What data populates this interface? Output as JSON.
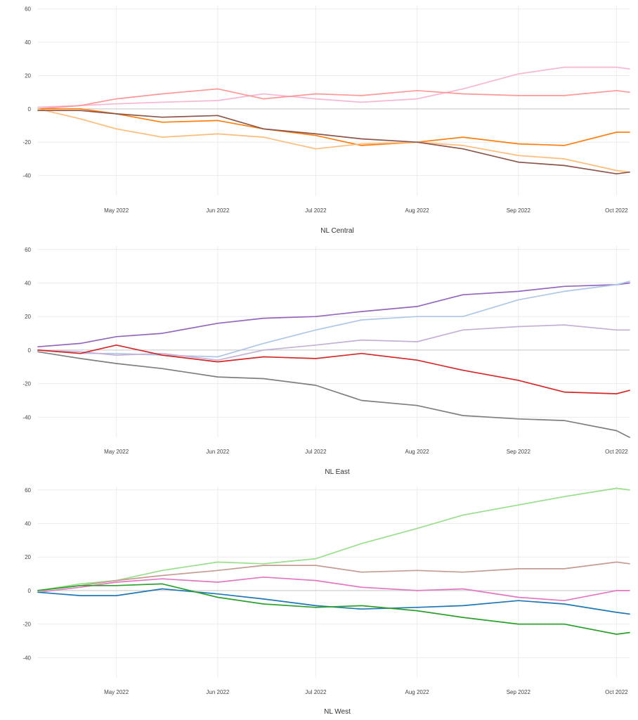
{
  "chart_data": [
    {
      "type": "line",
      "title": "NL Central",
      "xlabel": "",
      "ylabel": "",
      "ylim": [
        -52,
        62
      ],
      "grid": true,
      "zero_line": true,
      "legend": "none",
      "x_ticks": [
        "May 2022",
        "Jun 2022",
        "Jul 2022",
        "Aug 2022",
        "Sep 2022",
        "Oct 2022"
      ],
      "y_ticks": [
        60,
        40,
        20,
        0,
        -20,
        -40
      ],
      "x_tick_dates": [
        "2022-05-01",
        "2022-06-01",
        "2022-07-01",
        "2022-08-01",
        "2022-09-01",
        "2022-10-01"
      ],
      "x_range": [
        "2022-04-07",
        "2022-10-05"
      ],
      "series": [
        {
          "color": "#f7b6d2",
          "x": [
            "2022-04-07",
            "2022-04-20",
            "2022-05-01",
            "2022-05-15",
            "2022-06-01",
            "2022-06-15",
            "2022-07-01",
            "2022-07-15",
            "2022-08-01",
            "2022-08-15",
            "2022-09-01",
            "2022-09-15",
            "2022-10-01",
            "2022-10-05"
          ],
          "y": [
            1,
            2,
            3,
            4,
            5,
            9,
            6,
            4,
            6,
            12,
            21,
            25,
            25,
            24
          ]
        },
        {
          "color": "#ff9896",
          "x": [
            "2022-04-07",
            "2022-04-20",
            "2022-05-01",
            "2022-05-15",
            "2022-06-01",
            "2022-06-15",
            "2022-07-01",
            "2022-07-15",
            "2022-08-01",
            "2022-08-15",
            "2022-09-01",
            "2022-09-15",
            "2022-10-01",
            "2022-10-05"
          ],
          "y": [
            0,
            2,
            6,
            9,
            12,
            6,
            9,
            8,
            11,
            9,
            8,
            8,
            11,
            10
          ]
        },
        {
          "color": "#ff7f0e",
          "x": [
            "2022-04-07",
            "2022-04-20",
            "2022-05-01",
            "2022-05-15",
            "2022-06-01",
            "2022-06-15",
            "2022-07-01",
            "2022-07-15",
            "2022-08-01",
            "2022-08-15",
            "2022-09-01",
            "2022-09-15",
            "2022-10-01",
            "2022-10-05"
          ],
          "y": [
            0,
            0,
            -3,
            -8,
            -7,
            -12,
            -16,
            -22,
            -20,
            -17,
            -21,
            -22,
            -14,
            -14
          ]
        },
        {
          "color": "#ffbb78",
          "x": [
            "2022-04-07",
            "2022-04-20",
            "2022-05-01",
            "2022-05-15",
            "2022-06-01",
            "2022-06-15",
            "2022-07-01",
            "2022-07-15",
            "2022-08-01",
            "2022-08-15",
            "2022-09-01",
            "2022-09-15",
            "2022-10-01",
            "2022-10-05"
          ],
          "y": [
            0,
            -6,
            -12,
            -17,
            -15,
            -17,
            -24,
            -21,
            -20,
            -22,
            -28,
            -30,
            -37,
            -38
          ]
        },
        {
          "color": "#8c564b",
          "x": [
            "2022-04-07",
            "2022-04-20",
            "2022-05-01",
            "2022-05-15",
            "2022-06-01",
            "2022-06-15",
            "2022-07-01",
            "2022-07-15",
            "2022-08-01",
            "2022-08-15",
            "2022-09-01",
            "2022-09-15",
            "2022-10-01",
            "2022-10-05"
          ],
          "y": [
            -1,
            -1,
            -3,
            -5,
            -4,
            -12,
            -15,
            -18,
            -20,
            -24,
            -32,
            -34,
            -39,
            -38
          ]
        }
      ]
    },
    {
      "type": "line",
      "title": "NL East",
      "xlabel": "",
      "ylabel": "",
      "ylim": [
        -52,
        62
      ],
      "grid": true,
      "zero_line": true,
      "legend": "none",
      "x_ticks": [
        "May 2022",
        "Jun 2022",
        "Jul 2022",
        "Aug 2022",
        "Sep 2022",
        "Oct 2022"
      ],
      "y_ticks": [
        60,
        40,
        20,
        0,
        -20,
        -40
      ],
      "x_tick_dates": [
        "2022-05-01",
        "2022-06-01",
        "2022-07-01",
        "2022-08-01",
        "2022-09-01",
        "2022-10-01"
      ],
      "x_range": [
        "2022-04-07",
        "2022-10-05"
      ],
      "series": [
        {
          "color": "#9467bd",
          "x": [
            "2022-04-07",
            "2022-04-20",
            "2022-05-01",
            "2022-05-15",
            "2022-06-01",
            "2022-06-15",
            "2022-07-01",
            "2022-07-15",
            "2022-08-01",
            "2022-08-15",
            "2022-09-01",
            "2022-09-15",
            "2022-10-01",
            "2022-10-05"
          ],
          "y": [
            2,
            4,
            8,
            10,
            16,
            19,
            20,
            23,
            26,
            33,
            35,
            38,
            39,
            40
          ]
        },
        {
          "color": "#aec7e8",
          "x": [
            "2022-04-07",
            "2022-04-20",
            "2022-05-01",
            "2022-05-15",
            "2022-06-01",
            "2022-06-15",
            "2022-07-01",
            "2022-07-15",
            "2022-08-01",
            "2022-08-15",
            "2022-09-01",
            "2022-09-15",
            "2022-10-01",
            "2022-10-05"
          ],
          "y": [
            0,
            -2,
            -2,
            -3,
            -4,
            4,
            12,
            18,
            20,
            20,
            30,
            35,
            39,
            41
          ]
        },
        {
          "color": "#c5b0d5",
          "x": [
            "2022-04-07",
            "2022-04-20",
            "2022-05-01",
            "2022-05-15",
            "2022-06-01",
            "2022-06-15",
            "2022-07-01",
            "2022-07-15",
            "2022-08-01",
            "2022-08-15",
            "2022-09-01",
            "2022-09-15",
            "2022-10-01",
            "2022-10-05"
          ],
          "y": [
            0,
            -1,
            -3,
            -2,
            -6,
            0,
            3,
            6,
            5,
            12,
            14,
            15,
            12,
            12
          ]
        },
        {
          "color": "#d62728",
          "x": [
            "2022-04-07",
            "2022-04-20",
            "2022-05-01",
            "2022-05-15",
            "2022-06-01",
            "2022-06-15",
            "2022-07-01",
            "2022-07-15",
            "2022-08-01",
            "2022-08-15",
            "2022-09-01",
            "2022-09-15",
            "2022-10-01",
            "2022-10-05"
          ],
          "y": [
            0,
            -2,
            3,
            -3,
            -7,
            -4,
            -5,
            -2,
            -6,
            -12,
            -18,
            -25,
            -26,
            -24
          ]
        },
        {
          "color": "#7f7f7f",
          "x": [
            "2022-04-07",
            "2022-04-20",
            "2022-05-01",
            "2022-05-15",
            "2022-06-01",
            "2022-06-15",
            "2022-07-01",
            "2022-07-15",
            "2022-08-01",
            "2022-08-15",
            "2022-09-01",
            "2022-09-15",
            "2022-10-01",
            "2022-10-05"
          ],
          "y": [
            -1,
            -5,
            -8,
            -11,
            -16,
            -17,
            -21,
            -30,
            -33,
            -39,
            -41,
            -42,
            -48,
            -52
          ]
        }
      ]
    },
    {
      "type": "line",
      "title": "NL West",
      "xlabel": "",
      "ylabel": "",
      "ylim": [
        -52,
        62
      ],
      "grid": true,
      "zero_line": true,
      "legend": "none",
      "x_ticks": [
        "May 2022",
        "Jun 2022",
        "Jul 2022",
        "Aug 2022",
        "Sep 2022",
        "Oct 2022"
      ],
      "y_ticks": [
        60,
        40,
        20,
        0,
        -20,
        -40
      ],
      "x_tick_dates": [
        "2022-05-01",
        "2022-06-01",
        "2022-07-01",
        "2022-08-01",
        "2022-09-01",
        "2022-10-01"
      ],
      "x_range": [
        "2022-04-07",
        "2022-10-05"
      ],
      "series": [
        {
          "color": "#98df8a",
          "x": [
            "2022-04-07",
            "2022-04-20",
            "2022-05-01",
            "2022-05-15",
            "2022-06-01",
            "2022-06-15",
            "2022-07-01",
            "2022-07-15",
            "2022-08-01",
            "2022-08-15",
            "2022-09-01",
            "2022-09-15",
            "2022-10-01",
            "2022-10-05"
          ],
          "y": [
            0,
            4,
            6,
            12,
            17,
            16,
            19,
            28,
            37,
            45,
            51,
            56,
            61,
            60
          ]
        },
        {
          "color": "#c49c94",
          "x": [
            "2022-04-07",
            "2022-04-20",
            "2022-05-01",
            "2022-05-15",
            "2022-06-01",
            "2022-06-15",
            "2022-07-01",
            "2022-07-15",
            "2022-08-01",
            "2022-08-15",
            "2022-09-01",
            "2022-09-15",
            "2022-10-01",
            "2022-10-05"
          ],
          "y": [
            0,
            3,
            6,
            9,
            12,
            15,
            15,
            11,
            12,
            11,
            13,
            13,
            17,
            16
          ]
        },
        {
          "color": "#e377c2",
          "x": [
            "2022-04-07",
            "2022-04-20",
            "2022-05-01",
            "2022-05-15",
            "2022-06-01",
            "2022-06-15",
            "2022-07-01",
            "2022-07-15",
            "2022-08-01",
            "2022-08-15",
            "2022-09-01",
            "2022-09-15",
            "2022-10-01",
            "2022-10-05"
          ],
          "y": [
            -1,
            2,
            5,
            7,
            5,
            8,
            6,
            2,
            0,
            1,
            -4,
            -6,
            0,
            0
          ]
        },
        {
          "color": "#1f77b4",
          "x": [
            "2022-04-07",
            "2022-04-20",
            "2022-05-01",
            "2022-05-15",
            "2022-06-01",
            "2022-06-15",
            "2022-07-01",
            "2022-07-15",
            "2022-08-01",
            "2022-08-15",
            "2022-09-01",
            "2022-09-15",
            "2022-10-01",
            "2022-10-05"
          ],
          "y": [
            -1,
            -3,
            -3,
            1,
            -2,
            -5,
            -9,
            -11,
            -10,
            -9,
            -6,
            -8,
            -13,
            -14
          ]
        },
        {
          "color": "#2ca02c",
          "x": [
            "2022-04-07",
            "2022-04-20",
            "2022-05-01",
            "2022-05-15",
            "2022-06-01",
            "2022-06-15",
            "2022-07-01",
            "2022-07-15",
            "2022-08-01",
            "2022-08-15",
            "2022-09-01",
            "2022-09-15",
            "2022-10-01",
            "2022-10-05"
          ],
          "y": [
            0,
            3,
            3,
            4,
            -4,
            -8,
            -10,
            -9,
            -12,
            -16,
            -20,
            -20,
            -26,
            -25
          ]
        }
      ]
    }
  ]
}
